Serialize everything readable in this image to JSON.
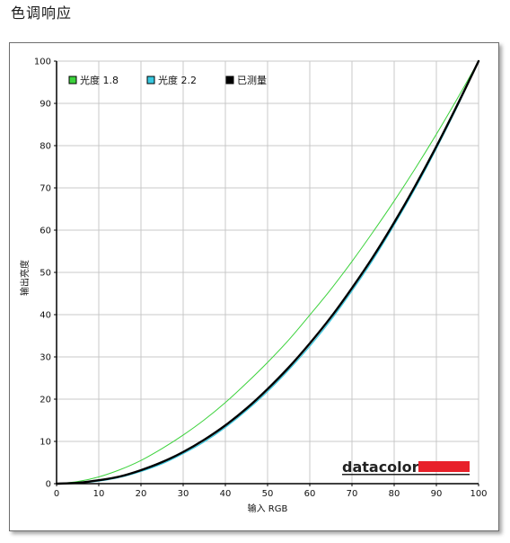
{
  "page": {
    "title": "色调响应"
  },
  "brand": {
    "logo_text": "datacolor",
    "logo_color": "#e8202a"
  },
  "chart_data": {
    "type": "line",
    "xlabel": "输入 RGB",
    "ylabel": "输出亮度",
    "xlim": [
      0,
      100
    ],
    "ylim": [
      0,
      100
    ],
    "x_ticks": [
      "0",
      "10",
      "20",
      "30",
      "40",
      "50",
      "60",
      "70",
      "80",
      "90",
      "100"
    ],
    "y_ticks": [
      "0",
      "10",
      "20",
      "30",
      "40",
      "50",
      "60",
      "70",
      "80",
      "90",
      "100"
    ],
    "grid": true,
    "legend": "top-left",
    "x": [
      0,
      5,
      10,
      15,
      20,
      25,
      30,
      35,
      40,
      45,
      50,
      55,
      60,
      65,
      70,
      75,
      80,
      85,
      90,
      95,
      100
    ],
    "series": [
      {
        "name": "光度 1.8",
        "color": "#3cd23c",
        "width": 1,
        "values": [
          0,
          0.5,
          1.6,
          3.3,
          5.5,
          8.3,
          11.5,
          15.1,
          19.2,
          23.8,
          28.7,
          34.0,
          39.9,
          46.0,
          52.6,
          59.6,
          66.9,
          74.6,
          82.7,
          91.2,
          100
        ]
      },
      {
        "name": "光度 2.2",
        "color": "#38c8e0",
        "width": 1.2,
        "values": [
          0,
          0.1,
          0.6,
          1.5,
          2.9,
          4.7,
          7.1,
          9.9,
          13.3,
          17.3,
          21.8,
          26.9,
          32.5,
          38.7,
          45.6,
          53.0,
          61.2,
          69.9,
          79.3,
          89.3,
          100
        ]
      },
      {
        "name": "已测量",
        "color": "#000000",
        "width": 2.4,
        "values": [
          0,
          0.2,
          0.8,
          1.7,
          3.2,
          5.1,
          7.5,
          10.4,
          13.8,
          17.8,
          22.4,
          27.5,
          33.2,
          39.4,
          46.3,
          53.7,
          61.8,
          70.5,
          79.8,
          89.7,
          100
        ]
      }
    ]
  }
}
